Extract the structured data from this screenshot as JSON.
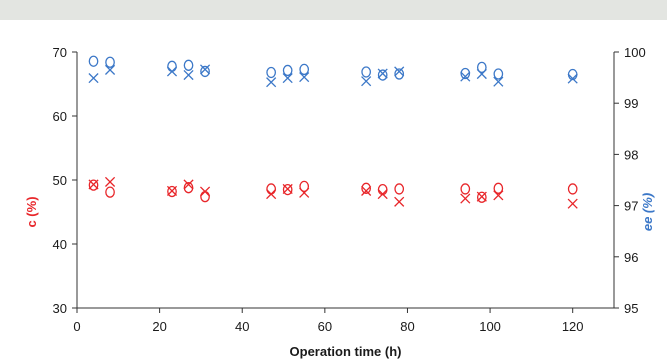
{
  "chart_data": {
    "type": "scatter",
    "xlabel": "Operation time (h)",
    "ylabel_left": "c (%)",
    "ylabel_right": "ee (%)",
    "xlim": [
      0,
      130
    ],
    "ylim_left": [
      30,
      70
    ],
    "ylim_right": [
      95,
      100
    ],
    "xticks": [
      "0",
      "20",
      "40",
      "60",
      "80",
      "100",
      "120"
    ],
    "yticks_left": [
      "30",
      "40",
      "50",
      "60",
      "70"
    ],
    "yticks_right": [
      "95",
      "96",
      "97",
      "98",
      "99",
      "100"
    ],
    "grid": false,
    "colors": {
      "c": "#e8262a",
      "ee": "#3c78c8",
      "axis": "#333333"
    },
    "series": [
      {
        "axis": "left",
        "color": "c",
        "marker": "circle",
        "points": [
          [
            4,
            49.2
          ],
          [
            8,
            48.1
          ],
          [
            23,
            48.2
          ],
          [
            27,
            48.8
          ],
          [
            31,
            47.4
          ],
          [
            47,
            48.6
          ],
          [
            51,
            48.5
          ],
          [
            55,
            49.0
          ],
          [
            70,
            48.7
          ],
          [
            74,
            48.5
          ],
          [
            78,
            48.6
          ],
          [
            94,
            48.6
          ],
          [
            98,
            47.3
          ],
          [
            102,
            48.7
          ],
          [
            120,
            48.6
          ]
        ]
      },
      {
        "axis": "left",
        "color": "c",
        "marker": "cross",
        "points": [
          [
            4,
            49.3
          ],
          [
            8,
            49.7
          ],
          [
            23,
            48.3
          ],
          [
            27,
            49.3
          ],
          [
            31,
            48.2
          ],
          [
            47,
            47.8
          ],
          [
            51,
            48.6
          ],
          [
            55,
            48.0
          ],
          [
            70,
            48.3
          ],
          [
            74,
            47.8
          ],
          [
            78,
            46.6
          ],
          [
            94,
            47.1
          ],
          [
            98,
            47.4
          ],
          [
            102,
            47.6
          ],
          [
            120,
            46.3
          ]
        ]
      },
      {
        "axis": "right",
        "color": "ee",
        "marker": "circle",
        "points": [
          [
            4,
            99.82
          ],
          [
            8,
            99.8
          ],
          [
            23,
            99.72
          ],
          [
            27,
            99.74
          ],
          [
            31,
            99.62
          ],
          [
            47,
            99.6
          ],
          [
            51,
            99.64
          ],
          [
            55,
            99.66
          ],
          [
            70,
            99.61
          ],
          [
            74,
            99.55
          ],
          [
            78,
            99.57
          ],
          [
            94,
            99.58
          ],
          [
            98,
            99.7
          ],
          [
            102,
            99.57
          ],
          [
            120,
            99.56
          ]
        ]
      },
      {
        "axis": "right",
        "color": "ee",
        "marker": "cross",
        "points": [
          [
            4,
            99.49
          ],
          [
            8,
            99.65
          ],
          [
            23,
            99.62
          ],
          [
            27,
            99.55
          ],
          [
            31,
            99.66
          ],
          [
            47,
            99.41
          ],
          [
            51,
            99.49
          ],
          [
            55,
            99.51
          ],
          [
            70,
            99.43
          ],
          [
            74,
            99.58
          ],
          [
            78,
            99.62
          ],
          [
            94,
            99.52
          ],
          [
            98,
            99.57
          ],
          [
            102,
            99.42
          ],
          [
            120,
            99.48
          ]
        ]
      }
    ]
  }
}
